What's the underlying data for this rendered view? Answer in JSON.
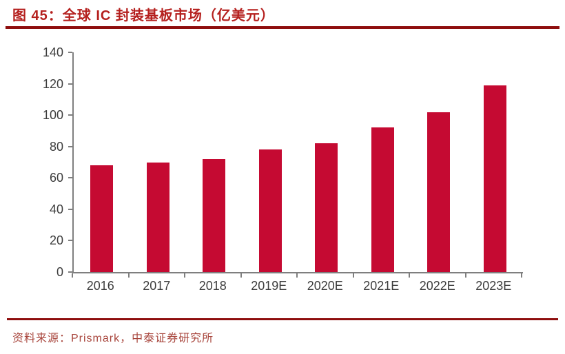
{
  "figure": {
    "title": "图 45：全球 IC 封装基板市场（亿美元）",
    "source": "资料来源：Prismark，中泰证券研究所"
  },
  "colors": {
    "bar": "#C50A32",
    "title_red": "#B5201E",
    "rule_red": "#8E0E0E",
    "source_red": "#A8453C",
    "axis_gray": "#7F7F7F",
    "tick_label_gray": "#3D3D3D"
  },
  "chart_data": {
    "type": "bar",
    "title": "全球IC封装基板市场（亿美元）",
    "categories": [
      "2016",
      "2017",
      "2018",
      "2019E",
      "2020E",
      "2021E",
      "2022E",
      "2023E"
    ],
    "values": [
      68,
      70,
      72,
      78,
      82,
      92,
      102,
      119
    ],
    "xlabel": "",
    "ylabel": "",
    "ylim": [
      0,
      140
    ],
    "yticks": [
      0,
      20,
      40,
      60,
      80,
      100,
      120,
      140
    ],
    "grid": false,
    "legend_position": "none",
    "bar_color": "#C50A32"
  }
}
